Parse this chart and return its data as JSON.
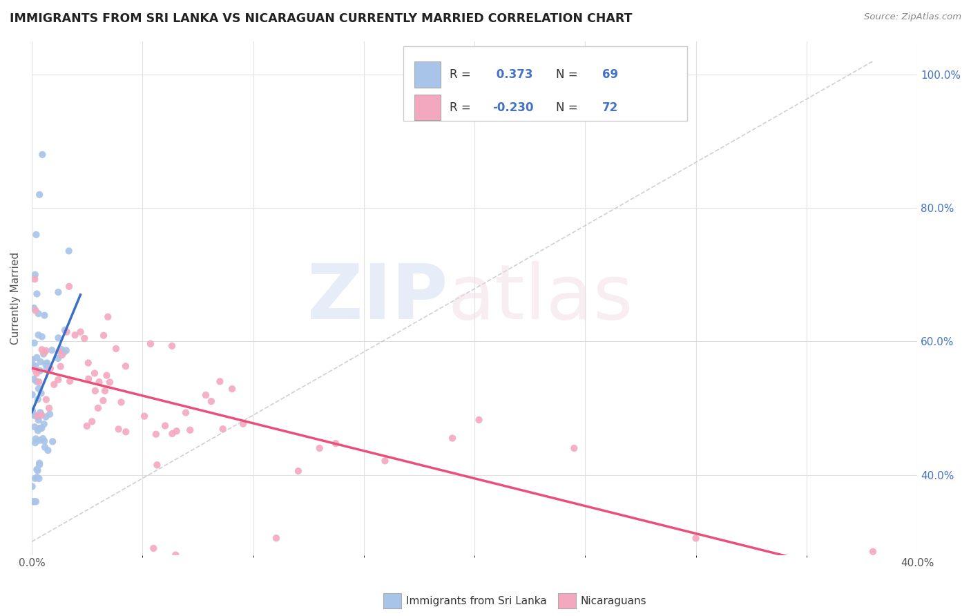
{
  "title": "IMMIGRANTS FROM SRI LANKA VS NICARAGUAN CURRENTLY MARRIED CORRELATION CHART",
  "source": "Source: ZipAtlas.com",
  "legend_label1": "Immigrants from Sri Lanka",
  "legend_label2": "Nicaraguans",
  "r1": 0.373,
  "n1": 69,
  "r2": -0.23,
  "n2": 72,
  "blue_color": "#A8C4E8",
  "pink_color": "#F4A8C0",
  "blue_line_color": "#3A6FC4",
  "pink_line_color": "#E8507A",
  "background_color": "#FFFFFF",
  "grid_color": "#E0E0E0",
  "x_min": 0.0,
  "x_max": 0.4,
  "y_min": 0.28,
  "y_max": 1.05,
  "right_ytick_labels": [
    "40.0%",
    "60.0%",
    "80.0%",
    "100.0%"
  ],
  "right_ytick_positions": [
    0.4,
    0.6,
    0.8,
    1.0
  ],
  "ylabel": "Currently Married",
  "watermark_zip": "ZIP",
  "watermark_atlas": "atlas",
  "title_color": "#222222",
  "source_color": "#888888",
  "ylabel_color": "#555555",
  "right_tick_color": "#4472C4",
  "legend_box_edge": "#CCCCCC",
  "annotation_r1_color": "#4472C4",
  "annotation_n1_color": "#4472C4",
  "annotation_r2_color": "#4472C4",
  "annotation_n2_color": "#4472C4",
  "annotation_label_color": "#333333"
}
